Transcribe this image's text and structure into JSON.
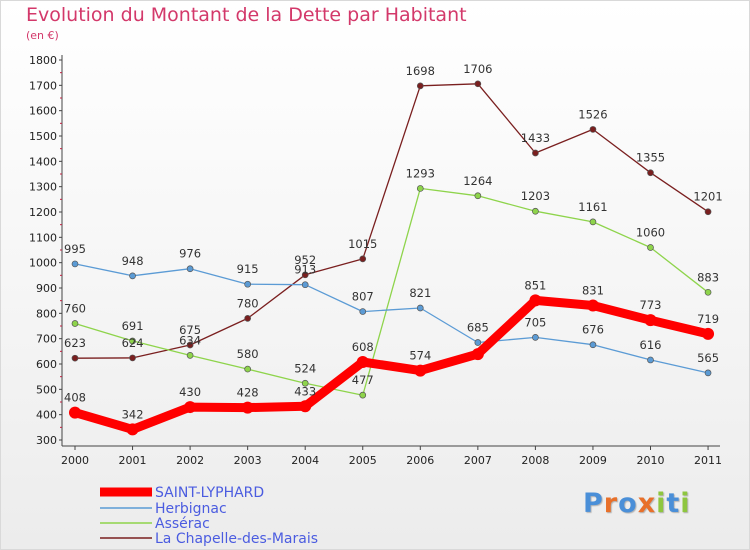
{
  "chart_data": {
    "type": "line",
    "title": "Evolution du Montant de la Dette par Habitant",
    "subtitle": "(en €)",
    "categories": [
      "2000",
      "2001",
      "2002",
      "2003",
      "2004",
      "2005",
      "2006",
      "2007",
      "2008",
      "2009",
      "2010",
      "2011"
    ],
    "y_ticks": [
      300,
      400,
      500,
      600,
      700,
      800,
      900,
      1000,
      1100,
      1200,
      1300,
      1400,
      1500,
      1600,
      1700,
      1800
    ],
    "ylim": [
      300,
      1800
    ],
    "grid": false,
    "legend_position": "bottom-left",
    "series": [
      {
        "name": "SAINT-LYPHARD",
        "color": "#ff0000",
        "values": [
          408,
          342,
          430,
          428,
          433,
          608,
          574,
          639,
          851,
          831,
          773,
          719
        ],
        "labels": [
          "408",
          "342",
          "430",
          "428",
          "433",
          "608",
          "574",
          "",
          "851",
          "831",
          "773",
          "719"
        ]
      },
      {
        "name": "Herbignac",
        "color": "#5b9bd5",
        "values": [
          995,
          948,
          976,
          915,
          913,
          807,
          821,
          685,
          705,
          676,
          616,
          565
        ],
        "labels": [
          "995",
          "948",
          "976",
          "915",
          "913",
          "807",
          "821",
          "685",
          "705",
          "676",
          "616",
          "565"
        ]
      },
      {
        "name": "Assérac",
        "color": "#8ed44b",
        "values": [
          760,
          691,
          634,
          580,
          524,
          477,
          1293,
          1264,
          1203,
          1161,
          1060,
          883
        ],
        "labels": [
          "760",
          "691",
          "634",
          "580",
          "524",
          "477",
          "1293",
          "1264",
          "1203",
          "1161",
          "1060",
          "883"
        ]
      },
      {
        "name": "La Chapelle-des-Marais",
        "color": "#7a1f1f",
        "values": [
          623,
          624,
          675,
          780,
          952,
          1015,
          1698,
          1706,
          1433,
          1526,
          1355,
          1201
        ],
        "labels": [
          "623",
          "624",
          "675",
          "780",
          "952",
          "1015",
          "1698",
          "1706",
          "1433",
          "1526",
          "1355",
          "1201"
        ]
      }
    ]
  },
  "brand": {
    "letters": [
      "P",
      "r",
      "o",
      "x",
      "i",
      "t",
      "i"
    ],
    "colors": [
      "#4a8fd8",
      "#e8702a",
      "#4a8fd8",
      "#e8702a",
      "#8ec63f",
      "#4a8fd8",
      "#8ec63f"
    ]
  }
}
